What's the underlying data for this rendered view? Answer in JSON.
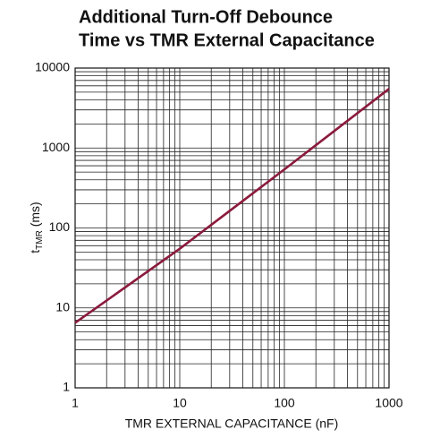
{
  "chart_data": {
    "type": "line",
    "title": [
      "Additional Turn-Off Debounce",
      "Time vs TMR External Capacitance"
    ],
    "xlabel": "TMR EXTERNAL CAPACITANCE (nF)",
    "ylabel": {
      "main": "t",
      "sub": "TMR",
      "rest": " (ms)"
    },
    "xlog": true,
    "ylog": true,
    "grid": true,
    "x": [
      1,
      10,
      100,
      1000
    ],
    "series": [
      {
        "name": "tTMR",
        "color": "#8b1a3c",
        "values": [
          6.5,
          55,
          540,
          5500
        ]
      }
    ],
    "xlim": [
      1,
      1000
    ],
    "ylim": [
      1,
      10000
    ],
    "xticks": [
      1,
      10,
      100,
      1000
    ],
    "yticks": [
      1,
      10,
      100,
      1000,
      10000
    ],
    "xminorticks": [
      2,
      3,
      4,
      5,
      6,
      7,
      8,
      9,
      20,
      30,
      40,
      50,
      60,
      70,
      80,
      90,
      200,
      300,
      400,
      500,
      600,
      700,
      800,
      900
    ],
    "yminorticks": [
      2,
      3,
      4,
      5,
      6,
      7,
      8,
      9,
      20,
      30,
      40,
      50,
      60,
      70,
      80,
      90,
      200,
      300,
      400,
      500,
      600,
      700,
      800,
      900,
      2000,
      3000,
      4000,
      5000,
      6000,
      7000,
      8000,
      9000
    ]
  }
}
